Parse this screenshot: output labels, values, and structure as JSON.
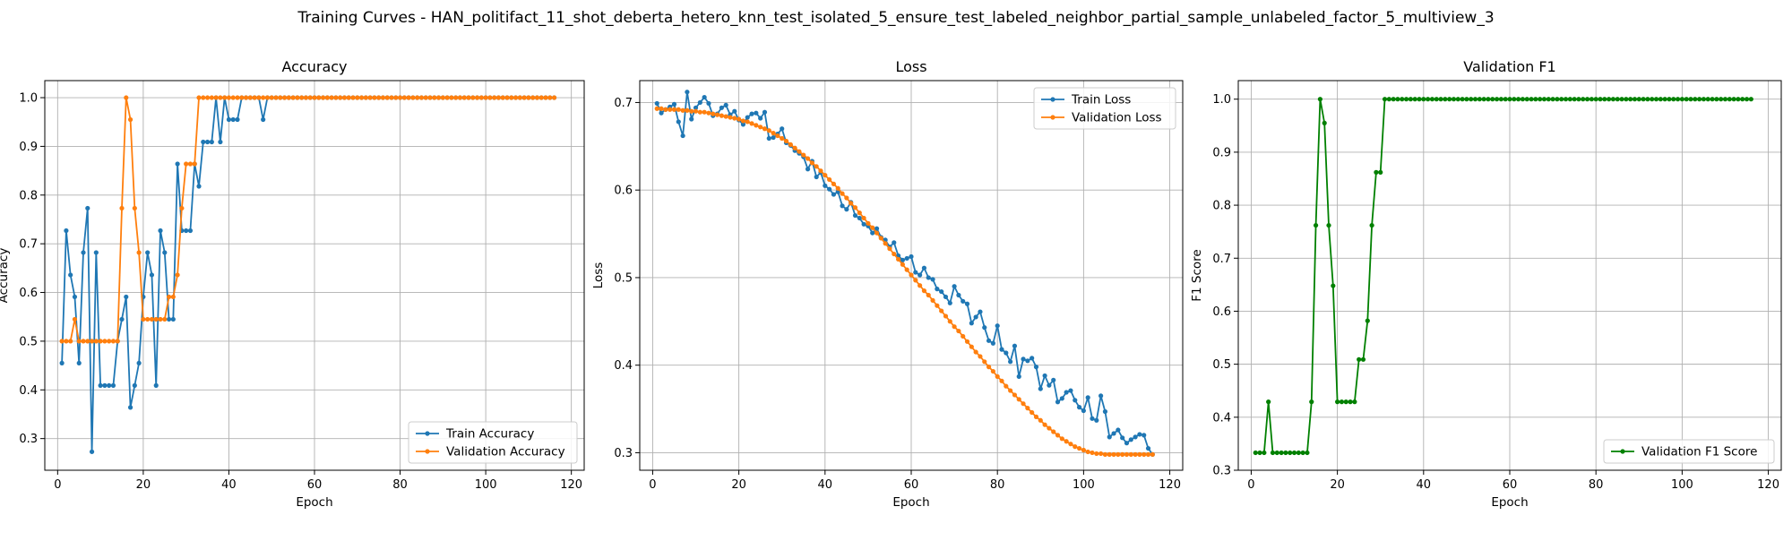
{
  "figure": {
    "suptitle": "Training Curves - HAN_politifact_11_shot_deberta_hetero_knn_test_isolated_5_ensure_test_labeled_neighbor_partial_sample_unlabeled_factor_5_multiview_3"
  },
  "colors": {
    "blue": "#1f77b4",
    "orange": "#ff7f0e",
    "green": "#008000"
  },
  "chart_data": [
    {
      "type": "line",
      "title": "Accuracy",
      "xlabel": "Epoch",
      "ylabel": "Accuracy",
      "xlim": [
        -3,
        123
      ],
      "ylim": [
        0.235,
        1.035
      ],
      "xticks": [
        0,
        20,
        40,
        60,
        80,
        100,
        120
      ],
      "yticks": [
        0.3,
        0.4,
        0.5,
        0.6,
        0.7,
        0.8,
        0.9,
        1.0
      ],
      "grid": true,
      "legend_position": "lower-right",
      "x": {
        "start": 1,
        "end": 116
      },
      "series": [
        {
          "name": "Train Accuracy",
          "color": "#1f77b4",
          "values": [
            0.455,
            0.727,
            0.636,
            0.591,
            0.455,
            0.682,
            0.773,
            0.273,
            0.682,
            0.409,
            0.409,
            0.409,
            0.409,
            0.5,
            0.545,
            0.591,
            0.364,
            0.409,
            0.455,
            0.591,
            0.682,
            0.636,
            0.409,
            0.727,
            0.682,
            0.545,
            0.545,
            0.864,
            0.727,
            0.727,
            0.727,
            0.864,
            0.818,
            0.909,
            0.909,
            0.909,
            1.0,
            0.909,
            1.0,
            0.955,
            0.955,
            0.955,
            1.0,
            1.0,
            1.0,
            1.0,
            1.0,
            0.955,
            1.0,
            1.0,
            1.0,
            1.0,
            1.0,
            1.0,
            1.0,
            1.0,
            1.0,
            1.0,
            1.0,
            1.0,
            1.0,
            1.0,
            1.0,
            1.0,
            1.0,
            1.0,
            1.0,
            1.0,
            1.0,
            1.0,
            1.0,
            1.0,
            1.0,
            1.0,
            1.0,
            1.0,
            1.0,
            1.0,
            1.0,
            1.0,
            1.0,
            1.0,
            1.0,
            1.0,
            1.0,
            1.0,
            1.0,
            1.0,
            1.0,
            1.0,
            1.0,
            1.0,
            1.0,
            1.0,
            1.0,
            1.0,
            1.0,
            1.0,
            1.0,
            1.0,
            1.0,
            1.0,
            1.0,
            1.0,
            1.0,
            1.0,
            1.0,
            1.0,
            1.0,
            1.0,
            1.0,
            1.0,
            1.0,
            1.0,
            1.0,
            1.0
          ]
        },
        {
          "name": "Validation Accuracy",
          "color": "#ff7f0e",
          "values": [
            0.5,
            0.5,
            0.5,
            0.545,
            0.5,
            0.5,
            0.5,
            0.5,
            0.5,
            0.5,
            0.5,
            0.5,
            0.5,
            0.5,
            0.773,
            1.0,
            0.955,
            0.773,
            0.682,
            0.545,
            0.545,
            0.545,
            0.545,
            0.545,
            0.545,
            0.591,
            0.591,
            0.636,
            0.773,
            0.864,
            0.864,
            0.864,
            1.0,
            1.0,
            1.0,
            1.0,
            1.0,
            1.0,
            1.0,
            1.0,
            1.0,
            1.0,
            1.0,
            1.0,
            1.0,
            1.0,
            1.0,
            1.0,
            1.0,
            1.0,
            1.0,
            1.0,
            1.0,
            1.0,
            1.0,
            1.0,
            1.0,
            1.0,
            1.0,
            1.0,
            1.0,
            1.0,
            1.0,
            1.0,
            1.0,
            1.0,
            1.0,
            1.0,
            1.0,
            1.0,
            1.0,
            1.0,
            1.0,
            1.0,
            1.0,
            1.0,
            1.0,
            1.0,
            1.0,
            1.0,
            1.0,
            1.0,
            1.0,
            1.0,
            1.0,
            1.0,
            1.0,
            1.0,
            1.0,
            1.0,
            1.0,
            1.0,
            1.0,
            1.0,
            1.0,
            1.0,
            1.0,
            1.0,
            1.0,
            1.0,
            1.0,
            1.0,
            1.0,
            1.0,
            1.0,
            1.0,
            1.0,
            1.0,
            1.0,
            1.0,
            1.0,
            1.0,
            1.0,
            1.0,
            1.0,
            1.0
          ]
        }
      ]
    },
    {
      "type": "line",
      "title": "Loss",
      "xlabel": "Epoch",
      "ylabel": "Loss",
      "xlim": [
        -3,
        123
      ],
      "ylim": [
        0.28,
        0.725
      ],
      "xticks": [
        0,
        20,
        40,
        60,
        80,
        100,
        120
      ],
      "yticks": [
        0.3,
        0.4,
        0.5,
        0.6,
        0.7
      ],
      "grid": true,
      "legend_position": "upper-right",
      "x": {
        "start": 1,
        "end": 116
      },
      "series": [
        {
          "name": "Train Loss",
          "color": "#1f77b4",
          "values": [
            0.699,
            0.688,
            0.692,
            0.695,
            0.698,
            0.678,
            0.662,
            0.712,
            0.681,
            0.694,
            0.7,
            0.706,
            0.699,
            0.685,
            0.687,
            0.694,
            0.697,
            0.686,
            0.69,
            0.68,
            0.675,
            0.683,
            0.687,
            0.688,
            0.682,
            0.689,
            0.659,
            0.66,
            0.664,
            0.67,
            0.654,
            0.651,
            0.645,
            0.642,
            0.638,
            0.624,
            0.633,
            0.615,
            0.62,
            0.605,
            0.601,
            0.595,
            0.598,
            0.582,
            0.578,
            0.586,
            0.571,
            0.568,
            0.561,
            0.559,
            0.551,
            0.556,
            0.546,
            0.543,
            0.535,
            0.54,
            0.525,
            0.52,
            0.522,
            0.524,
            0.506,
            0.503,
            0.511,
            0.5,
            0.498,
            0.487,
            0.484,
            0.478,
            0.471,
            0.49,
            0.48,
            0.473,
            0.47,
            0.448,
            0.455,
            0.461,
            0.443,
            0.428,
            0.425,
            0.445,
            0.418,
            0.414,
            0.404,
            0.422,
            0.387,
            0.407,
            0.405,
            0.408,
            0.398,
            0.373,
            0.388,
            0.377,
            0.383,
            0.358,
            0.362,
            0.369,
            0.371,
            0.36,
            0.352,
            0.348,
            0.363,
            0.339,
            0.337,
            0.365,
            0.347,
            0.318,
            0.322,
            0.326,
            0.317,
            0.311,
            0.315,
            0.318,
            0.321,
            0.32,
            0.305,
            0.298
          ]
        },
        {
          "name": "Validation Loss",
          "color": "#ff7f0e",
          "values": [
            0.693,
            0.693,
            0.692,
            0.692,
            0.692,
            0.692,
            0.691,
            0.691,
            0.69,
            0.69,
            0.689,
            0.689,
            0.688,
            0.687,
            0.686,
            0.685,
            0.684,
            0.683,
            0.682,
            0.681,
            0.679,
            0.678,
            0.676,
            0.674,
            0.672,
            0.67,
            0.668,
            0.665,
            0.662,
            0.659,
            0.656,
            0.652,
            0.648,
            0.644,
            0.64,
            0.636,
            0.631,
            0.627,
            0.622,
            0.617,
            0.612,
            0.607,
            0.602,
            0.596,
            0.591,
            0.585,
            0.58,
            0.574,
            0.568,
            0.562,
            0.557,
            0.551,
            0.545,
            0.539,
            0.533,
            0.527,
            0.521,
            0.515,
            0.509,
            0.503,
            0.497,
            0.491,
            0.485,
            0.48,
            0.474,
            0.468,
            0.462,
            0.456,
            0.45,
            0.444,
            0.439,
            0.433,
            0.427,
            0.421,
            0.415,
            0.41,
            0.404,
            0.398,
            0.393,
            0.387,
            0.382,
            0.376,
            0.371,
            0.366,
            0.361,
            0.356,
            0.351,
            0.346,
            0.341,
            0.337,
            0.332,
            0.328,
            0.324,
            0.32,
            0.316,
            0.313,
            0.31,
            0.307,
            0.305,
            0.303,
            0.301,
            0.3,
            0.299,
            0.299,
            0.298,
            0.298,
            0.298,
            0.298,
            0.298,
            0.298,
            0.298,
            0.298,
            0.298,
            0.298,
            0.298,
            0.298
          ]
        }
      ]
    },
    {
      "type": "line",
      "title": "Validation F1",
      "xlabel": "Epoch",
      "ylabel": "F1 Score",
      "xlim": [
        -3,
        123
      ],
      "ylim": [
        0.3,
        1.035
      ],
      "xticks": [
        0,
        20,
        40,
        60,
        80,
        100,
        120
      ],
      "yticks": [
        0.3,
        0.4,
        0.5,
        0.6,
        0.7,
        0.8,
        0.9,
        1.0
      ],
      "grid": true,
      "legend_position": "lower-right",
      "x": {
        "start": 1,
        "end": 116
      },
      "series": [
        {
          "name": "Validation F1 Score",
          "color": "#008000",
          "values": [
            0.333,
            0.333,
            0.333,
            0.429,
            0.333,
            0.333,
            0.333,
            0.333,
            0.333,
            0.333,
            0.333,
            0.333,
            0.333,
            0.429,
            0.762,
            1.0,
            0.955,
            0.762,
            0.648,
            0.429,
            0.429,
            0.429,
            0.429,
            0.429,
            0.509,
            0.509,
            0.582,
            0.762,
            0.862,
            0.862,
            1.0,
            1.0,
            1.0,
            1.0,
            1.0,
            1.0,
            1.0,
            1.0,
            1.0,
            1.0,
            1.0,
            1.0,
            1.0,
            1.0,
            1.0,
            1.0,
            1.0,
            1.0,
            1.0,
            1.0,
            1.0,
            1.0,
            1.0,
            1.0,
            1.0,
            1.0,
            1.0,
            1.0,
            1.0,
            1.0,
            1.0,
            1.0,
            1.0,
            1.0,
            1.0,
            1.0,
            1.0,
            1.0,
            1.0,
            1.0,
            1.0,
            1.0,
            1.0,
            1.0,
            1.0,
            1.0,
            1.0,
            1.0,
            1.0,
            1.0,
            1.0,
            1.0,
            1.0,
            1.0,
            1.0,
            1.0,
            1.0,
            1.0,
            1.0,
            1.0,
            1.0,
            1.0,
            1.0,
            1.0,
            1.0,
            1.0,
            1.0,
            1.0,
            1.0,
            1.0,
            1.0,
            1.0,
            1.0,
            1.0,
            1.0,
            1.0,
            1.0,
            1.0,
            1.0,
            1.0,
            1.0,
            1.0,
            1.0,
            1.0,
            1.0,
            1.0
          ]
        }
      ]
    }
  ]
}
